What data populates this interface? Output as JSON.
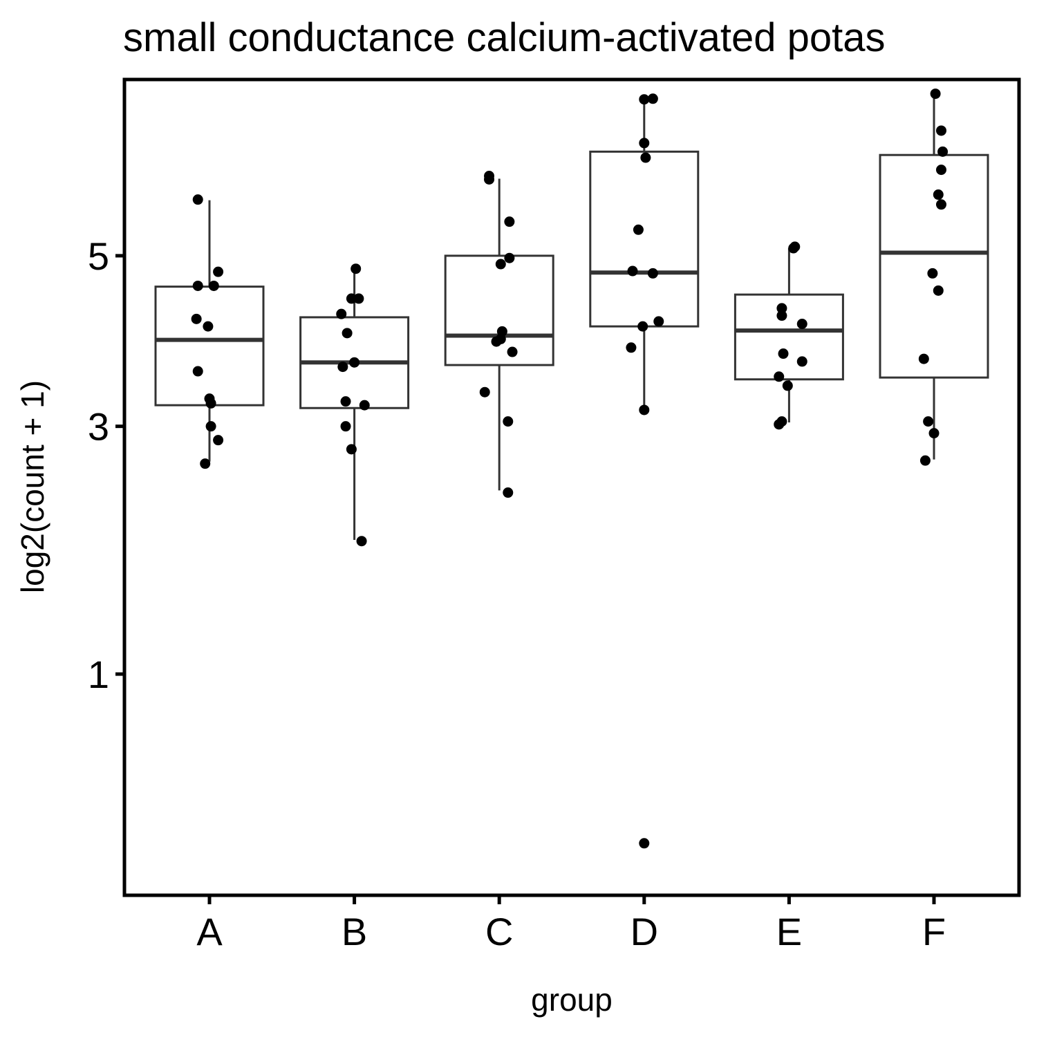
{
  "chart_data": {
    "type": "box",
    "title": "small conductance calcium-activated potas",
    "xlabel": "group",
    "ylabel": "log2(count + 1)",
    "y_scale": "sqrt",
    "ylim": [
      0.12,
      7.6
    ],
    "yticks": [
      1,
      3,
      5
    ],
    "grid": false,
    "colors": {
      "box_line": "#333333",
      "points": "#000000",
      "axis": "#000000"
    },
    "categories": [
      "A",
      "B",
      "C",
      "D",
      "E",
      "F"
    ],
    "boxes": [
      {
        "group": "A",
        "lower_whisker": 2.65,
        "q1": 3.22,
        "median": 3.95,
        "q3": 4.6,
        "upper_whisker": 5.76
      },
      {
        "group": "B",
        "lower_whisker": 1.95,
        "q1": 3.19,
        "median": 3.69,
        "q3": 4.22,
        "upper_whisker": 4.81
      },
      {
        "group": "C",
        "lower_whisker": 2.38,
        "q1": 3.66,
        "median": 4.0,
        "q3": 5.0,
        "upper_whisker": 6.07
      },
      {
        "group": "D",
        "lower_whisker": 3.18,
        "q1": 4.11,
        "median": 4.78,
        "q3": 6.47,
        "upper_whisker": 7.27
      },
      {
        "group": "E",
        "lower_whisker": 3.04,
        "q1": 3.5,
        "median": 4.06,
        "q3": 4.5,
        "upper_whisker": 5.1
      },
      {
        "group": "F",
        "lower_whisker": 2.67,
        "q1": 3.52,
        "median": 5.04,
        "q3": 6.42,
        "upper_whisker": 7.35
      }
    ],
    "points": [
      {
        "group": "A",
        "jitter": -0.08,
        "value": 5.77
      },
      {
        "group": "A",
        "jitter": 0.06,
        "value": 4.79
      },
      {
        "group": "A",
        "jitter": -0.08,
        "value": 4.61
      },
      {
        "group": "A",
        "jitter": 0.03,
        "value": 4.61
      },
      {
        "group": "A",
        "jitter": -0.09,
        "value": 4.2
      },
      {
        "group": "A",
        "jitter": -0.01,
        "value": 4.11
      },
      {
        "group": "A",
        "jitter": -0.08,
        "value": 3.59
      },
      {
        "group": "A",
        "jitter": 0.0,
        "value": 3.29
      },
      {
        "group": "A",
        "jitter": 0.01,
        "value": 3.24
      },
      {
        "group": "A",
        "jitter": 0.01,
        "value": 3.0
      },
      {
        "group": "A",
        "jitter": 0.06,
        "value": 2.86
      },
      {
        "group": "A",
        "jitter": -0.03,
        "value": 2.63
      },
      {
        "group": "B",
        "jitter": 0.01,
        "value": 4.83
      },
      {
        "group": "B",
        "jitter": 0.03,
        "value": 4.45
      },
      {
        "group": "B",
        "jitter": -0.02,
        "value": 4.45
      },
      {
        "group": "B",
        "jitter": -0.09,
        "value": 4.26
      },
      {
        "group": "B",
        "jitter": -0.05,
        "value": 4.03
      },
      {
        "group": "B",
        "jitter": 0.0,
        "value": 3.69
      },
      {
        "group": "B",
        "jitter": -0.08,
        "value": 3.64
      },
      {
        "group": "B",
        "jitter": -0.06,
        "value": 3.26
      },
      {
        "group": "B",
        "jitter": 0.07,
        "value": 3.22
      },
      {
        "group": "B",
        "jitter": -0.06,
        "value": 3.0
      },
      {
        "group": "B",
        "jitter": -0.02,
        "value": 2.77
      },
      {
        "group": "B",
        "jitter": 0.05,
        "value": 1.94
      },
      {
        "group": "C",
        "jitter": -0.07,
        "value": 6.11
      },
      {
        "group": "C",
        "jitter": -0.07,
        "value": 6.06
      },
      {
        "group": "C",
        "jitter": 0.07,
        "value": 5.46
      },
      {
        "group": "C",
        "jitter": 0.07,
        "value": 4.97
      },
      {
        "group": "C",
        "jitter": 0.01,
        "value": 4.89
      },
      {
        "group": "C",
        "jitter": 0.02,
        "value": 4.05
      },
      {
        "group": "C",
        "jitter": 0.01,
        "value": 3.96
      },
      {
        "group": "C",
        "jitter": -0.02,
        "value": 3.93
      },
      {
        "group": "C",
        "jitter": 0.09,
        "value": 3.81
      },
      {
        "group": "C",
        "jitter": -0.1,
        "value": 3.36
      },
      {
        "group": "C",
        "jitter": 0.06,
        "value": 3.05
      },
      {
        "group": "C",
        "jitter": 0.06,
        "value": 2.36
      },
      {
        "group": "D",
        "jitter": 0.0,
        "value": 7.28
      },
      {
        "group": "D",
        "jitter": 0.06,
        "value": 7.29
      },
      {
        "group": "D",
        "jitter": 0.0,
        "value": 6.6
      },
      {
        "group": "D",
        "jitter": 0.01,
        "value": 6.38
      },
      {
        "group": "D",
        "jitter": -0.04,
        "value": 5.35
      },
      {
        "group": "D",
        "jitter": -0.08,
        "value": 4.8
      },
      {
        "group": "D",
        "jitter": 0.06,
        "value": 4.77
      },
      {
        "group": "D",
        "jitter": 0.1,
        "value": 4.17
      },
      {
        "group": "D",
        "jitter": -0.01,
        "value": 4.11
      },
      {
        "group": "D",
        "jitter": -0.09,
        "value": 3.86
      },
      {
        "group": "D",
        "jitter": 0.0,
        "value": 3.17
      },
      {
        "group": "D",
        "jitter": 0.0,
        "value": 0.25
      },
      {
        "group": "E",
        "jitter": 0.03,
        "value": 5.1
      },
      {
        "group": "E",
        "jitter": 0.04,
        "value": 5.12
      },
      {
        "group": "E",
        "jitter": -0.05,
        "value": 4.33
      },
      {
        "group": "E",
        "jitter": -0.05,
        "value": 4.24
      },
      {
        "group": "E",
        "jitter": 0.09,
        "value": 4.14
      },
      {
        "group": "E",
        "jitter": -0.04,
        "value": 3.79
      },
      {
        "group": "E",
        "jitter": 0.09,
        "value": 3.7
      },
      {
        "group": "E",
        "jitter": -0.07,
        "value": 3.53
      },
      {
        "group": "E",
        "jitter": -0.01,
        "value": 3.43
      },
      {
        "group": "E",
        "jitter": -0.05,
        "value": 3.05
      },
      {
        "group": "E",
        "jitter": -0.07,
        "value": 3.02
      },
      {
        "group": "F",
        "jitter": 0.01,
        "value": 7.37
      },
      {
        "group": "F",
        "jitter": 0.05,
        "value": 6.79
      },
      {
        "group": "F",
        "jitter": 0.06,
        "value": 6.47
      },
      {
        "group": "F",
        "jitter": 0.05,
        "value": 6.2
      },
      {
        "group": "F",
        "jitter": 0.03,
        "value": 5.84
      },
      {
        "group": "F",
        "jitter": 0.05,
        "value": 5.7
      },
      {
        "group": "F",
        "jitter": -0.01,
        "value": 4.77
      },
      {
        "group": "F",
        "jitter": 0.03,
        "value": 4.55
      },
      {
        "group": "F",
        "jitter": -0.07,
        "value": 3.73
      },
      {
        "group": "F",
        "jitter": -0.04,
        "value": 3.05
      },
      {
        "group": "F",
        "jitter": 0.0,
        "value": 2.93
      },
      {
        "group": "F",
        "jitter": -0.06,
        "value": 2.66
      }
    ]
  }
}
